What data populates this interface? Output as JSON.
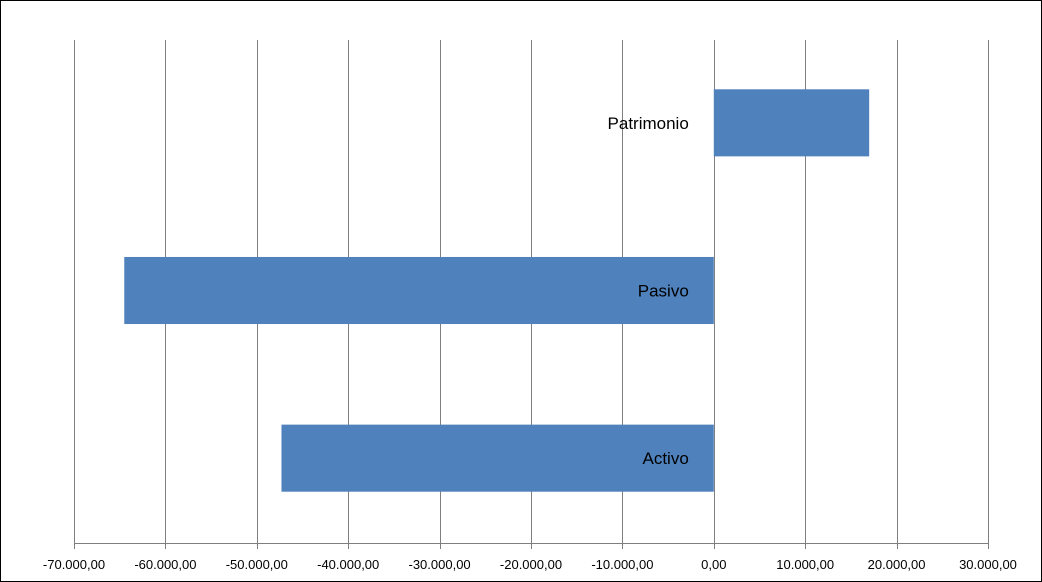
{
  "chart_data": {
    "type": "bar",
    "orientation": "horizontal",
    "categories": [
      "Patrimonio",
      "Pasivo",
      "Activo"
    ],
    "values": [
      17000,
      -64500,
      -47300
    ],
    "xlim": [
      -70000,
      30000
    ],
    "x_ticks": [
      -70000,
      -60000,
      -50000,
      -40000,
      -30000,
      -20000,
      -10000,
      0,
      10000,
      20000,
      30000
    ],
    "x_tick_labels": [
      "-70.000,00",
      "-60.000,00",
      "-50.000,00",
      "-40.000,00",
      "-30.000,00",
      "-20.000,00",
      "-10.000,00",
      "0,00",
      "10.000,00",
      "20.000,00",
      "30.000,00"
    ],
    "title": "",
    "xlabel": "",
    "ylabel": "",
    "grid": "vertical",
    "legend": "none",
    "bar_color": "#4F81BD",
    "gridline_color": "#7F7F7F",
    "frame_color": "#000000"
  }
}
